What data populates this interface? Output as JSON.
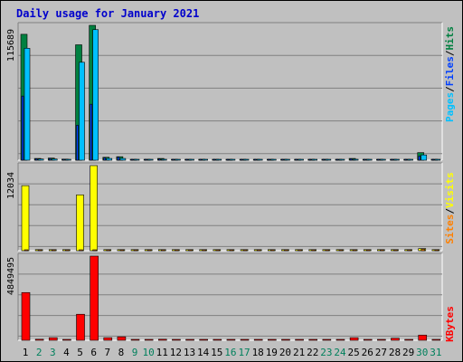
{
  "title": "Daily usage for January 2021",
  "colors": {
    "hits": "#008040",
    "files": "#0040ff",
    "pages": "#00c0ff",
    "visits": "#ffff00",
    "sites": "#ff8000",
    "kbytes": "#ff0000",
    "weekend": "#00805c",
    "weekday": "#000000"
  },
  "chart_data": [
    {
      "type": "bar",
      "panel": "hits-files-pages",
      "y_max_label": "115689",
      "ylim": [
        0,
        115689
      ],
      "legend": [
        "Pages",
        "Files",
        "Hits"
      ],
      "categories": [
        "1",
        "2",
        "3",
        "4",
        "5",
        "6",
        "7",
        "8",
        "9",
        "10",
        "11",
        "12",
        "13",
        "14",
        "15",
        "16",
        "17",
        "18",
        "19",
        "20",
        "21",
        "22",
        "23",
        "24",
        "25",
        "26",
        "27",
        "28",
        "29",
        "30",
        "31"
      ],
      "series": [
        {
          "name": "Hits",
          "values": [
            108000,
            1500,
            1800,
            900,
            99000,
            115689,
            2500,
            3000,
            700,
            600,
            1500,
            700,
            500,
            500,
            500,
            500,
            500,
            500,
            500,
            500,
            500,
            500,
            500,
            500,
            1500,
            500,
            500,
            500,
            500,
            6500,
            500
          ]
        },
        {
          "name": "Files",
          "values": [
            55000,
            1200,
            1400,
            700,
            30000,
            48000,
            2000,
            2700,
            600,
            500,
            1000,
            500,
            400,
            400,
            400,
            400,
            400,
            400,
            400,
            400,
            400,
            400,
            400,
            400,
            1200,
            400,
            400,
            400,
            400,
            3500,
            400
          ]
        },
        {
          "name": "Pages",
          "values": [
            96000,
            1000,
            1000,
            500,
            84000,
            112000,
            1500,
            1500,
            400,
            400,
            800,
            400,
            300,
            300,
            300,
            300,
            300,
            300,
            300,
            300,
            300,
            300,
            300,
            300,
            800,
            300,
            300,
            300,
            300,
            4500,
            300
          ]
        }
      ]
    },
    {
      "type": "bar",
      "panel": "sites-visits",
      "y_max_label": "12034",
      "ylim": [
        0,
        12034
      ],
      "legend": [
        "Sites",
        "Visits"
      ],
      "categories": [
        "1",
        "2",
        "3",
        "4",
        "5",
        "6",
        "7",
        "8",
        "9",
        "10",
        "11",
        "12",
        "13",
        "14",
        "15",
        "16",
        "17",
        "18",
        "19",
        "20",
        "21",
        "22",
        "23",
        "24",
        "25",
        "26",
        "27",
        "28",
        "29",
        "30",
        "31"
      ],
      "series": [
        {
          "name": "Visits",
          "values": [
            9200,
            150,
            150,
            150,
            7900,
            12034,
            150,
            150,
            150,
            150,
            150,
            150,
            150,
            150,
            150,
            150,
            150,
            150,
            150,
            150,
            150,
            150,
            150,
            150,
            150,
            150,
            150,
            150,
            150,
            300,
            150
          ]
        },
        {
          "name": "Sites",
          "values": [
            100,
            100,
            100,
            100,
            100,
            100,
            100,
            100,
            100,
            100,
            100,
            100,
            100,
            100,
            100,
            100,
            100,
            100,
            100,
            100,
            100,
            100,
            100,
            100,
            100,
            100,
            100,
            100,
            100,
            200,
            100
          ]
        }
      ]
    },
    {
      "type": "bar",
      "panel": "kbytes",
      "y_max_label": "4849495",
      "ylim": [
        0,
        4849495
      ],
      "legend": [
        "KBytes"
      ],
      "categories": [
        "1",
        "2",
        "3",
        "4",
        "5",
        "6",
        "7",
        "8",
        "9",
        "10",
        "11",
        "12",
        "13",
        "14",
        "15",
        "16",
        "17",
        "18",
        "19",
        "20",
        "21",
        "22",
        "23",
        "24",
        "25",
        "26",
        "27",
        "28",
        "29",
        "30",
        "31"
      ],
      "series": [
        {
          "name": "KBytes",
          "values": [
            2750000,
            60000,
            150000,
            40000,
            1500000,
            4849495,
            150000,
            200000,
            40000,
            40000,
            60000,
            40000,
            40000,
            40000,
            40000,
            40000,
            40000,
            40000,
            40000,
            40000,
            40000,
            40000,
            40000,
            40000,
            150000,
            40000,
            40000,
            120000,
            40000,
            300000,
            40000
          ]
        }
      ]
    }
  ],
  "x_labels": [
    {
      "text": "1",
      "weekend": false
    },
    {
      "text": "2",
      "weekend": true
    },
    {
      "text": "3",
      "weekend": true
    },
    {
      "text": "4",
      "weekend": false
    },
    {
      "text": "5",
      "weekend": false
    },
    {
      "text": "6",
      "weekend": false
    },
    {
      "text": "7",
      "weekend": false
    },
    {
      "text": "8",
      "weekend": false
    },
    {
      "text": "9",
      "weekend": true
    },
    {
      "text": "10",
      "weekend": true
    },
    {
      "text": "11",
      "weekend": false
    },
    {
      "text": "12",
      "weekend": false
    },
    {
      "text": "13",
      "weekend": false
    },
    {
      "text": "14",
      "weekend": false
    },
    {
      "text": "15",
      "weekend": false
    },
    {
      "text": "16",
      "weekend": true
    },
    {
      "text": "17",
      "weekend": true
    },
    {
      "text": "18",
      "weekend": false
    },
    {
      "text": "19",
      "weekend": false
    },
    {
      "text": "20",
      "weekend": false
    },
    {
      "text": "21",
      "weekend": false
    },
    {
      "text": "22",
      "weekend": false
    },
    {
      "text": "23",
      "weekend": true
    },
    {
      "text": "24",
      "weekend": true
    },
    {
      "text": "25",
      "weekend": false
    },
    {
      "text": "26",
      "weekend": false
    },
    {
      "text": "27",
      "weekend": false
    },
    {
      "text": "28",
      "weekend": false
    },
    {
      "text": "29",
      "weekend": false
    },
    {
      "text": "30",
      "weekend": true
    },
    {
      "text": "31",
      "weekend": true
    }
  ],
  "legend_labels": {
    "pages": "Pages",
    "files": "Files",
    "hits": "Hits",
    "sites": "Sites",
    "visits": "Visits",
    "kbytes": "KBytes",
    "sep": "/"
  }
}
